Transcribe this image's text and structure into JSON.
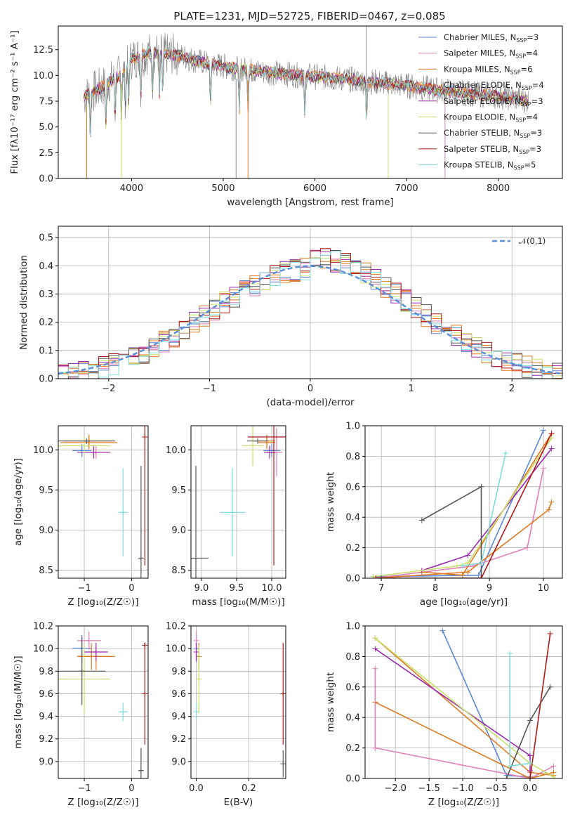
{
  "figure": {
    "title": "PLATE=1231, MJD=52725, FIBERID=0467, z=0.085"
  },
  "colors": {
    "Chabrier MILES": "#5b86d8",
    "Salpeter MILES": "#e07fb8",
    "Kroupa MILES": "#e07a1f",
    "Chabrier ELODIE": "#e07a1f",
    "Salpeter ELODIE": "#9b27b0",
    "Kroupa ELODIE": "#c8e06a",
    "Chabrier STELIB": "#555555",
    "Salpeter STELIB": "#b01818",
    "Kroupa STELIB": "#7fdde0",
    "data": "#8a8a8a",
    "normal": "#5b8fd8"
  },
  "chart_data": [
    {
      "id": "spectrum",
      "type": "line",
      "title": "PLATE=1231, MJD=52725, FIBERID=0467, z=0.085",
      "xlabel": "wavelength [Angstrom, rest frame]",
      "ylabel": "Flux [fλ10⁻¹⁷ erg cm⁻² s⁻¹ A⁻¹]",
      "xlim": [
        3200,
        8700
      ],
      "ylim": [
        0,
        14.8
      ],
      "xticks": [
        "4000",
        "5000",
        "6000",
        "7000",
        "8000"
      ],
      "yticks": [
        "0.0",
        "2.5",
        "5.0",
        "7.5",
        "10.0",
        "12.5"
      ],
      "legend_position": "top-right",
      "legend": [
        {
          "name": "Chabrier MILES, N",
          "sub": "SSP",
          "tail": "=3",
          "key": "Chabrier MILES"
        },
        {
          "name": "Salpeter MILES, N",
          "sub": "SSP",
          "tail": "=4",
          "key": "Salpeter MILES"
        },
        {
          "name": "Kroupa MILES, N",
          "sub": "SSP",
          "tail": "=6",
          "key": "Kroupa MILES"
        },
        {
          "name": "Chabrier ELODIE, N",
          "sub": "SSP",
          "tail": "=4",
          "key": "Chabrier ELODIE"
        },
        {
          "name": "Salpeter ELODIE, N",
          "sub": "SSP",
          "tail": "=3",
          "key": "Salpeter ELODIE"
        },
        {
          "name": "Kroupa ELODIE, N",
          "sub": "SSP",
          "tail": "=4",
          "key": "Kroupa ELODIE"
        },
        {
          "name": "Chabrier STELIB, N",
          "sub": "SSP",
          "tail": "=3",
          "key": "Chabrier STELIB"
        },
        {
          "name": "Salpeter STELIB, N",
          "sub": "SSP",
          "tail": "=3",
          "key": "Salpeter STELIB"
        },
        {
          "name": "Kroupa STELIB, N",
          "sub": "SSP",
          "tail": "=5",
          "key": "Kroupa STELIB"
        }
      ],
      "continuum": [
        [
          3500,
          8.0
        ],
        [
          3700,
          9.0
        ],
        [
          3900,
          10.2
        ],
        [
          4000,
          11.6
        ],
        [
          4200,
          12.2
        ],
        [
          4500,
          12.0
        ],
        [
          4800,
          11.2
        ],
        [
          5200,
          10.6
        ],
        [
          5600,
          10.2
        ],
        [
          6000,
          9.9
        ],
        [
          6500,
          9.5
        ],
        [
          7000,
          9.0
        ],
        [
          7500,
          8.4
        ],
        [
          8000,
          8.0
        ],
        [
          8300,
          7.6
        ]
      ],
      "absorption_lines": [
        3550,
        3720,
        3820,
        3889,
        3933,
        3969,
        4101,
        4227,
        4304,
        4340,
        4861,
        5175,
        5270,
        5890,
        6563
      ],
      "spikes": [
        {
          "x": 3510,
          "y": 0.0,
          "key": "Kroupa MILES"
        },
        {
          "x": 3890,
          "y": 0.0,
          "key": "Kroupa ELODIE"
        },
        {
          "x": 5140,
          "y": 0.0,
          "key": "data"
        },
        {
          "x": 5270,
          "y": 0.0,
          "key": "Chabrier ELODIE"
        },
        {
          "x": 6560,
          "y": 14.8,
          "key": "data"
        },
        {
          "x": 6800,
          "y": 0.0,
          "key": "Kroupa ELODIE"
        },
        {
          "x": 7420,
          "y": 0.0,
          "key": "Salpeter MILES"
        }
      ]
    },
    {
      "id": "residuals",
      "type": "line",
      "xlabel": "(data-model)/error",
      "ylabel": "Normed distribution",
      "xlim": [
        -2.5,
        2.5
      ],
      "ylim": [
        0,
        0.54
      ],
      "xticks": [
        "−2",
        "−1",
        "0",
        "1",
        "2"
      ],
      "yticks": [
        "0.0",
        "0.1",
        "0.2",
        "0.3",
        "0.4",
        "0.5"
      ],
      "bin_width": 0.1,
      "legend_position": "top-right",
      "legend": [
        {
          "name": "𝒩(0,1)",
          "key": "normal"
        }
      ]
    },
    {
      "id": "age-vs-Z",
      "type": "scatter",
      "xlabel": "Z [log₁₀(Z/Z☉)]",
      "ylabel": "age  [log₁₀(age/yr)]",
      "xlim": [
        -1.55,
        0.35
      ],
      "ylim": [
        8.4,
        10.3
      ],
      "xticks": [
        "−1",
        "0"
      ],
      "yticks": [
        "8.5",
        "9.0",
        "9.5",
        "10.0"
      ],
      "points": [
        {
          "key": "Chabrier MILES",
          "x": -1.05,
          "xe": 0.2,
          "y": 9.99,
          "ye": 0.08
        },
        {
          "key": "Salpeter MILES",
          "x": -0.75,
          "xe": 0.25,
          "y": 9.97,
          "ye": 0.08
        },
        {
          "key": "Kroupa MILES",
          "x": -0.9,
          "xe": 0.6,
          "y": 10.09,
          "ye": 0.08
        },
        {
          "key": "Chabrier ELODIE",
          "x": -0.9,
          "xe": 0.5,
          "y": 10.11,
          "ye": 0.08
        },
        {
          "key": "Salpeter ELODIE",
          "x": -0.8,
          "xe": 0.35,
          "y": 9.97,
          "ye": 0.08
        },
        {
          "key": "Kroupa ELODIE",
          "x": -1.0,
          "xe": 0.55,
          "y": 10.05,
          "ye": 0.12
        },
        {
          "key": "Chabrier STELIB",
          "x": 0.2,
          "xe": 0.05,
          "y": 8.65,
          "ye": 1.15
        },
        {
          "key": "Salpeter STELIB",
          "x": 0.28,
          "xe": 0.0,
          "y": 10.16,
          "ye": 1.6
        },
        {
          "key": "Kroupa STELIB",
          "x": -0.18,
          "xe": 0.1,
          "y": 9.22,
          "ye": 0.55
        },
        {
          "key": "Chabrier STELIB",
          "x": -0.95,
          "xe": 0.6,
          "y": 10.11,
          "ye": 0.0
        }
      ]
    },
    {
      "id": "age-vs-mass",
      "type": "scatter",
      "xlabel": "mass [log₁₀(M/M☉)]",
      "ylabel": "",
      "xlim": [
        8.85,
        10.2
      ],
      "ylim": [
        8.4,
        10.3
      ],
      "xticks": [
        "9.0",
        "9.5",
        "10.0"
      ],
      "yticks": [
        "8.5",
        "9.0",
        "9.5",
        "10.0"
      ],
      "points": [
        {
          "key": "Chabrier MILES",
          "x": 10.0,
          "xe": 0.12,
          "y": 9.99,
          "ye": 0.08
        },
        {
          "key": "Salpeter MILES",
          "x": 10.07,
          "xe": 0.08,
          "y": 9.97,
          "ye": 0.3
        },
        {
          "key": "Kroupa MILES",
          "x": 9.93,
          "xe": 0.12,
          "y": 10.09,
          "ye": 0.08
        },
        {
          "key": "Chabrier ELODIE",
          "x": 9.93,
          "xe": 0.12,
          "y": 10.11,
          "ye": 0.08
        },
        {
          "key": "Salpeter ELODIE",
          "x": 9.97,
          "xe": 0.08,
          "y": 9.97,
          "ye": 0.08
        },
        {
          "key": "Kroupa ELODIE",
          "x": 9.73,
          "xe": 0.15,
          "y": 10.05,
          "ye": 0.25
        },
        {
          "key": "Chabrier STELIB",
          "x": 8.92,
          "xe": 0.18,
          "y": 8.65,
          "ye": 1.15
        },
        {
          "key": "Salpeter STELIB",
          "x": 10.03,
          "xe": 0.37,
          "y": 10.16,
          "ye": 1.6
        },
        {
          "key": "Kroupa STELIB",
          "x": 9.44,
          "xe": 0.18,
          "y": 9.22,
          "ye": 0.55
        },
        {
          "key": "Chabrier STELIB",
          "x": 9.8,
          "xe": 0.15,
          "y": 10.11,
          "ye": 0.0
        }
      ]
    },
    {
      "id": "weight-vs-age",
      "type": "line",
      "xlabel": "age  [log₁₀(age/yr)]",
      "ylabel": "mass weight",
      "xlim": [
        6.7,
        10.35
      ],
      "ylim": [
        0,
        1.0
      ],
      "xticks": [
        "7",
        "8",
        "9",
        "10"
      ],
      "yticks": [
        "0.0",
        "0.2",
        "0.4",
        "0.6",
        "0.8",
        "1.0"
      ],
      "series": [
        {
          "key": "Chabrier MILES",
          "x": [
            6.85,
            8.8,
            10.0
          ],
          "y": [
            0.01,
            0.02,
            0.97
          ]
        },
        {
          "key": "Salpeter MILES",
          "x": [
            6.85,
            8.7,
            9.7,
            10.0
          ],
          "y": [
            0.0,
            0.08,
            0.2,
            0.72
          ]
        },
        {
          "key": "Kroupa MILES",
          "x": [
            6.85,
            8.6,
            10.1,
            10.15
          ],
          "y": [
            0.0,
            0.04,
            0.45,
            0.5
          ]
        },
        {
          "key": "Chabrier ELODIE",
          "x": [
            7.75,
            8.5,
            10.15
          ],
          "y": [
            0.04,
            0.02,
            0.95
          ]
        },
        {
          "key": "Salpeter ELODIE",
          "x": [
            7.75,
            8.6,
            10.15
          ],
          "y": [
            0.05,
            0.15,
            0.85
          ]
        },
        {
          "key": "Kroupa ELODIE",
          "x": [
            6.85,
            8.4,
            8.6,
            10.15
          ],
          "y": [
            0.01,
            0.08,
            0.1,
            0.92
          ]
        },
        {
          "key": "Chabrier STELIB",
          "x": [
            7.75,
            8.85,
            8.85,
            7.0
          ],
          "y": [
            0.38,
            0.6,
            0.0,
            0.0
          ]
        },
        {
          "key": "Salpeter STELIB",
          "x": [
            6.9,
            8.85,
            10.15
          ],
          "y": [
            0.0,
            0.0,
            0.95
          ]
        },
        {
          "key": "Kroupa STELIB",
          "x": [
            8.5,
            8.85,
            9.3
          ],
          "y": [
            0.08,
            0.1,
            0.82
          ]
        }
      ]
    },
    {
      "id": "mass-vs-Z",
      "type": "scatter",
      "xlabel": "Z [log₁₀(Z/Z☉)]",
      "ylabel": "mass [log₁₀(M/M☉)]",
      "xlim": [
        -1.55,
        0.35
      ],
      "ylim": [
        8.85,
        10.2
      ],
      "xticks": [
        "−1",
        "0"
      ],
      "yticks": [
        "9.0",
        "9.2",
        "9.4",
        "9.6",
        "9.8",
        "10.0",
        "10.2"
      ],
      "points": [
        {
          "key": "Chabrier MILES",
          "x": -1.05,
          "xe": 0.2,
          "y": 10.0,
          "ye": 0.12
        },
        {
          "key": "Salpeter MILES",
          "x": -0.9,
          "xe": 0.25,
          "y": 10.07,
          "ye": 0.08
        },
        {
          "key": "Kroupa MILES",
          "x": -0.75,
          "xe": 0.4,
          "y": 9.93,
          "ye": 0.12
        },
        {
          "key": "Chabrier ELODIE",
          "x": -0.85,
          "xe": 0.3,
          "y": 9.93,
          "ye": 0.12
        },
        {
          "key": "Salpeter ELODIE",
          "x": -0.75,
          "xe": 0.25,
          "y": 9.97,
          "ye": 0.08
        },
        {
          "key": "Kroupa ELODIE",
          "x": -1.0,
          "xe": 0.55,
          "y": 9.73,
          "ye": 0.3
        },
        {
          "key": "Chabrier STELIB",
          "x": 0.2,
          "xe": 0.05,
          "y": 8.92,
          "ye": 0.2
        },
        {
          "key": "Salpeter STELIB",
          "x": 0.28,
          "xe": 0.0,
          "y": 10.03,
          "ye": 0.02
        },
        {
          "key": "Salpeter STELIB",
          "x": 0.28,
          "xe": 0.0,
          "y": 9.6,
          "ye": 0.45
        },
        {
          "key": "Kroupa STELIB",
          "x": -0.18,
          "xe": 0.1,
          "y": 9.44,
          "ye": 0.08
        },
        {
          "key": "Chabrier STELIB",
          "x": -1.05,
          "xe": 0.5,
          "y": 9.8,
          "ye": 0.3
        }
      ]
    },
    {
      "id": "mass-vs-EBV",
      "type": "scatter",
      "xlabel": "E(B-V)",
      "ylabel": "",
      "xlim": [
        -0.02,
        0.34
      ],
      "ylim": [
        8.85,
        10.2
      ],
      "xticks": [
        "0.0",
        "0.2"
      ],
      "yticks": [
        "9.0",
        "9.2",
        "9.4",
        "9.6",
        "9.8",
        "10.0",
        "10.2"
      ],
      "points": [
        {
          "key": "Chabrier MILES",
          "x": 0.0,
          "xe": 0.0,
          "y": 10.0,
          "ye": 0.12
        },
        {
          "key": "Salpeter MILES",
          "x": 0.0,
          "xe": 0.0,
          "y": 10.07,
          "ye": 0.08
        },
        {
          "key": "Kroupa MILES",
          "x": 0.01,
          "xe": 0.0,
          "y": 9.93,
          "ye": 0.12
        },
        {
          "key": "Salpeter ELODIE",
          "x": 0.0,
          "xe": 0.0,
          "y": 9.97,
          "ye": 0.08
        },
        {
          "key": "Kroupa ELODIE",
          "x": 0.01,
          "xe": 0.0,
          "y": 9.73,
          "ye": 0.3
        },
        {
          "key": "Chabrier STELIB",
          "x": 0.33,
          "xe": 0.0,
          "y": 8.98,
          "ye": 0.12
        },
        {
          "key": "Salpeter STELIB",
          "x": 0.33,
          "xe": 0.0,
          "y": 9.6,
          "ye": 0.45
        },
        {
          "key": "Kroupa STELIB",
          "x": 0.0,
          "xe": 0.0,
          "y": 9.44,
          "ye": 0.08
        }
      ]
    },
    {
      "id": "weight-vs-Z",
      "type": "line",
      "xlabel": "Z [log₁₀(Z/Z☉)]",
      "ylabel": "mass weight",
      "xlim": [
        -2.45,
        0.48
      ],
      "ylim": [
        0,
        1.0
      ],
      "xticks": [
        "−2.0",
        "−1.5",
        "−1.0",
        "−0.5",
        "0.0"
      ],
      "yticks": [
        "0.0",
        "0.2",
        "0.4",
        "0.6",
        "0.8",
        "1.0"
      ],
      "series": [
        {
          "key": "Chabrier MILES",
          "x": [
            -1.3,
            -0.35,
            0.0
          ],
          "y": [
            0.97,
            0.02,
            0.01
          ]
        },
        {
          "key": "Salpeter MILES",
          "x": [
            -2.3,
            0.0,
            0.35
          ],
          "y": [
            0.2,
            0.0,
            0.08
          ]
        },
        {
          "key": "Kroupa MILES",
          "x": [
            -2.3,
            0.0,
            0.35
          ],
          "y": [
            0.5,
            0.0,
            0.04
          ]
        },
        {
          "key": "Chabrier ELODIE",
          "x": [
            -2.3,
            0.0,
            0.35
          ],
          "y": [
            0.92,
            0.04,
            0.02
          ]
        },
        {
          "key": "Salpeter ELODIE",
          "x": [
            -2.3,
            0.0,
            0.0
          ],
          "y": [
            0.85,
            0.15,
            0.05
          ]
        },
        {
          "key": "Kroupa ELODIE",
          "x": [
            -2.3,
            0.0,
            0.35
          ],
          "y": [
            0.92,
            0.1,
            0.01
          ]
        },
        {
          "key": "Chabrier STELIB",
          "x": [
            -0.35,
            0.0,
            0.3
          ],
          "y": [
            0.0,
            0.38,
            0.6
          ]
        },
        {
          "key": "Salpeter STELIB",
          "x": [
            0.0,
            0.3
          ],
          "y": [
            0.0,
            0.95
          ]
        },
        {
          "key": "Kroupa STELIB",
          "x": [
            -0.3,
            -0.3,
            0.0
          ],
          "y": [
            0.82,
            0.08,
            0.1
          ]
        },
        {
          "key": "Salpeter MILES",
          "x": [
            -2.3,
            -2.3
          ],
          "y": [
            0.2,
            0.72
          ]
        }
      ]
    }
  ]
}
